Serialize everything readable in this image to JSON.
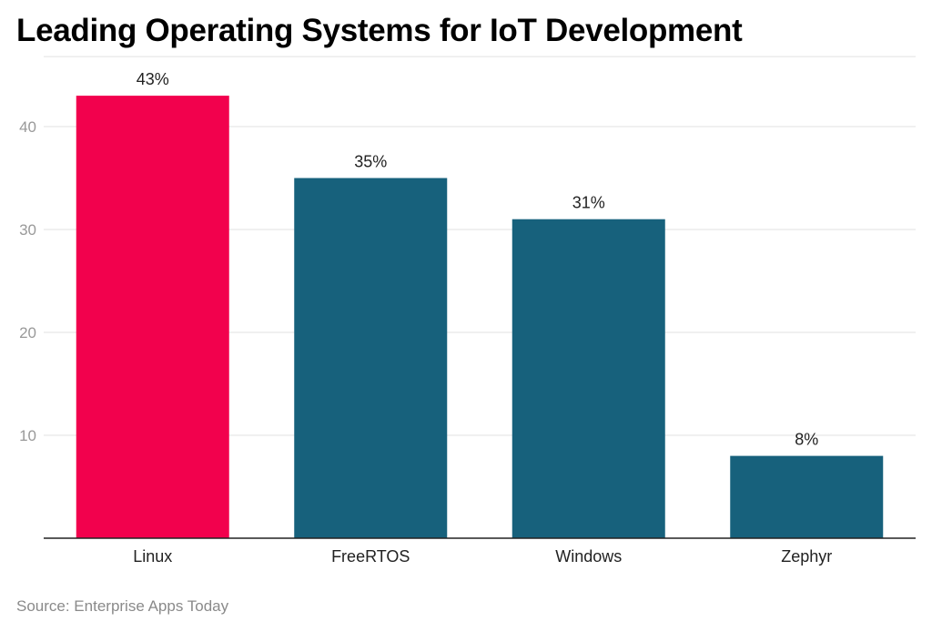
{
  "chart_data": {
    "type": "bar",
    "title": "Leading Operating Systems for IoT Development",
    "categories": [
      "Linux",
      "FreeRTOS",
      "Windows",
      "Zephyr"
    ],
    "values": [
      43,
      35,
      31,
      8
    ],
    "data_labels": [
      "43%",
      "35%",
      "31%",
      "8%"
    ],
    "bar_colors": [
      "#f2014d",
      "#17617c",
      "#17617c",
      "#17617c"
    ],
    "yticks": [
      10,
      20,
      30,
      40
    ],
    "ylim": [
      0,
      46.8
    ],
    "xlabel": "",
    "ylabel": "",
    "grid": true,
    "source": "Source: Enterprise Apps Today"
  },
  "colors": {
    "grid": "#e2e2e2",
    "axis": "#222222"
  }
}
